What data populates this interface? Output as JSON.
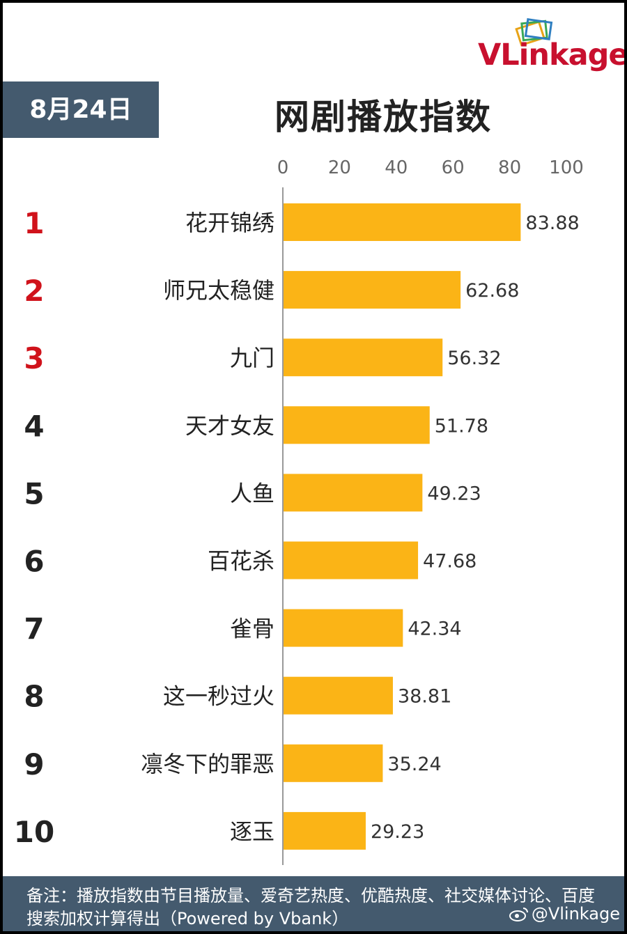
{
  "date": "8月24日",
  "brand": "VLinkage",
  "footer": {
    "note": "备注：播放指数由节目播放量、爱奇艺热度、优酷热度、社交媒体讨论、百度搜索加权计算得出（Powered by Vbank）",
    "watermark": "@Vlinkage"
  },
  "colors": {
    "bar": "#fbb416",
    "rank_top": "#d0121b",
    "rank": "#222222",
    "header_bg": "#445a6e"
  },
  "chart_data": {
    "type": "bar",
    "orientation": "horizontal",
    "title": "网剧播放指数",
    "ranks": [
      "1",
      "2",
      "3",
      "4",
      "5",
      "6",
      "7",
      "8",
      "9",
      "10"
    ],
    "categories": [
      "花开锦绣",
      "师兄太稳健",
      "九门",
      "天才女友",
      "人鱼",
      "百花杀",
      "雀骨",
      "这一秒过火",
      "凛冬下的罪恶",
      "逐玉"
    ],
    "values": [
      83.88,
      62.68,
      56.32,
      51.78,
      49.23,
      47.68,
      42.34,
      38.81,
      35.24,
      29.23
    ],
    "value_labels": [
      "83.88",
      "62.68",
      "56.32",
      "51.78",
      "49.23",
      "47.68",
      "42.34",
      "38.81",
      "35.24",
      "29.23"
    ],
    "xlim": [
      0,
      100
    ],
    "xticks": [
      "0",
      "20",
      "40",
      "60",
      "80",
      "100"
    ],
    "axis_position": "top",
    "grid": false,
    "legend": "none"
  }
}
